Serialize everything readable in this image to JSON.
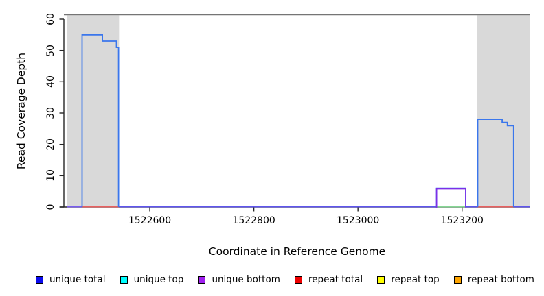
{
  "figure": {
    "background": "#ffffff",
    "axis_color": "#262626",
    "text_color": "#000000"
  },
  "chart_data": {
    "type": "area",
    "title": "",
    "xlabel": "Coordinate in Reference Genome",
    "ylabel": "Read Coverage Depth",
    "xlim": [
      1522435,
      1523331
    ],
    "ylim": [
      0,
      60
    ],
    "x_ticks": [
      1522600,
      1522800,
      1523000,
      1523200
    ],
    "y_ticks": [
      0,
      10,
      20,
      30,
      40,
      50,
      60
    ],
    "grid": false,
    "legend_position": "bottom",
    "top_border_color": "#757575",
    "highlight_color": "#d9d9d9",
    "highlight_regions": [
      {
        "x1": 1522441,
        "x2": 1522541
      },
      {
        "x1": 1523229,
        "x2": 1523331
      }
    ],
    "series": [
      {
        "name": "unique total",
        "legend_color": "#0b0bee",
        "line_color": "#3a76ec",
        "steps": [
          [
            1522435,
            0
          ],
          [
            1522470,
            0
          ],
          [
            1522470,
            55
          ],
          [
            1522509,
            55
          ],
          [
            1522509,
            53
          ],
          [
            1522536,
            53
          ],
          [
            1522536,
            51
          ],
          [
            1522540,
            51
          ],
          [
            1522540,
            0
          ],
          [
            1523151,
            0
          ],
          [
            1523151,
            6
          ],
          [
            1523207,
            6
          ],
          [
            1523207,
            0
          ],
          [
            1523230,
            0
          ],
          [
            1523230,
            28
          ],
          [
            1523277,
            28
          ],
          [
            1523277,
            27
          ],
          [
            1523287,
            27
          ],
          [
            1523287,
            26
          ],
          [
            1523299,
            26
          ],
          [
            1523299,
            0
          ],
          [
            1523331,
            0
          ]
        ]
      },
      {
        "name": "unique top",
        "legend_color": "#00ffff",
        "line_color": "#00ffff",
        "steps": [
          [
            1522435,
            0
          ],
          [
            1523331,
            0
          ]
        ]
      },
      {
        "name": "unique bottom",
        "legend_color": "#a020f0",
        "line_color": "#7c2fe8",
        "steps": [
          [
            1522435,
            0
          ],
          [
            1523151,
            0
          ],
          [
            1523151,
            6
          ],
          [
            1523207,
            6
          ],
          [
            1523207,
            0
          ],
          [
            1523331,
            0
          ]
        ]
      },
      {
        "name": "repeat total",
        "legend_color": "#ee0000",
        "line_color": "#e96060",
        "steps": [
          [
            1522435,
            0
          ],
          [
            1523331,
            0
          ]
        ]
      },
      {
        "name": "repeat top",
        "legend_color": "#ffff00",
        "line_color": "#ffff00",
        "steps": [
          [
            1522435,
            0
          ],
          [
            1523331,
            0
          ]
        ]
      },
      {
        "name": "repeat bottom",
        "legend_color": "#ffa500",
        "line_color": "#ffa500",
        "steps": [
          [
            1522435,
            0
          ],
          [
            1523331,
            0
          ]
        ]
      }
    ],
    "baseline_segments": [
      {
        "x1": 1522441,
        "x2": 1522470,
        "color": "#7a5df0"
      },
      {
        "x1": 1522470,
        "x2": 1522541,
        "color": "#e96060"
      },
      {
        "x1": 1522541,
        "x2": 1523151,
        "color": "#5f55ee"
      },
      {
        "x1": 1523151,
        "x2": 1523207,
        "color": "#86d794"
      },
      {
        "x1": 1523207,
        "x2": 1523230,
        "color": "#5f55ee"
      },
      {
        "x1": 1523230,
        "x2": 1523299,
        "color": "#e96060"
      },
      {
        "x1": 1523299,
        "x2": 1523331,
        "color": "#5f55ee"
      }
    ]
  }
}
